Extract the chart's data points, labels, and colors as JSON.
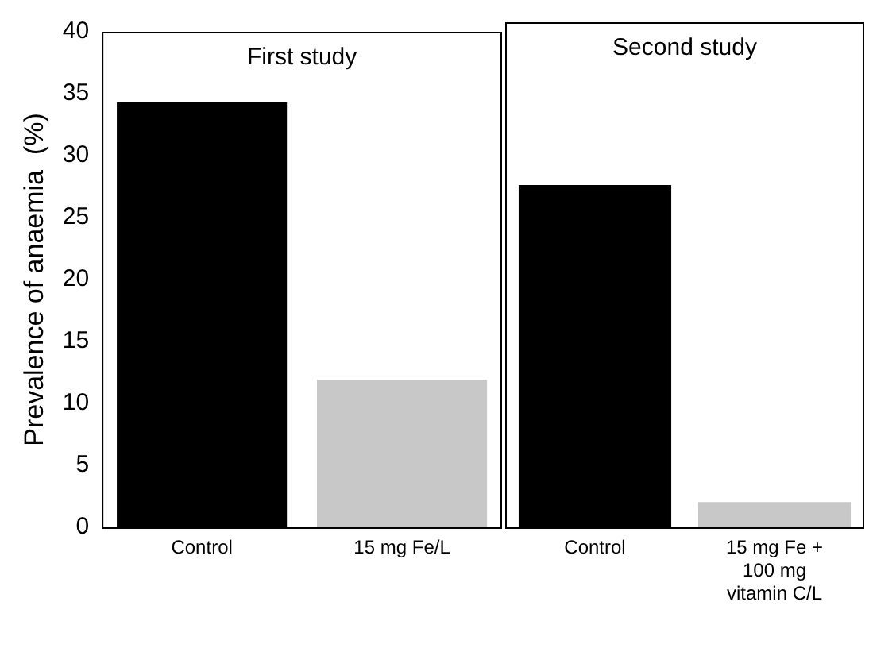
{
  "chart_data": [
    {
      "type": "bar",
      "title": "First study",
      "ylabel": "Prevalence of anaemia  (%)",
      "categories": [
        "Control",
        "15 mg Fe/L"
      ],
      "values": [
        34.3,
        11.9
      ],
      "colors": [
        "#000000",
        "#c8c8c8"
      ],
      "ylim": [
        0,
        40
      ],
      "yticks": [
        0,
        5,
        10,
        15,
        20,
        25,
        30,
        35,
        40
      ]
    },
    {
      "type": "bar",
      "title": "Second study",
      "categories": [
        "Control",
        "15 mg Fe + 100 mg vitamin C/L"
      ],
      "values": [
        27.1,
        2.0
      ],
      "colors": [
        "#000000",
        "#c8c8c8"
      ],
      "ylim": [
        0,
        40
      ],
      "yticks": [
        0,
        5,
        10,
        15,
        20,
        25,
        30,
        35,
        40
      ],
      "tick_labels": "x"
    }
  ]
}
